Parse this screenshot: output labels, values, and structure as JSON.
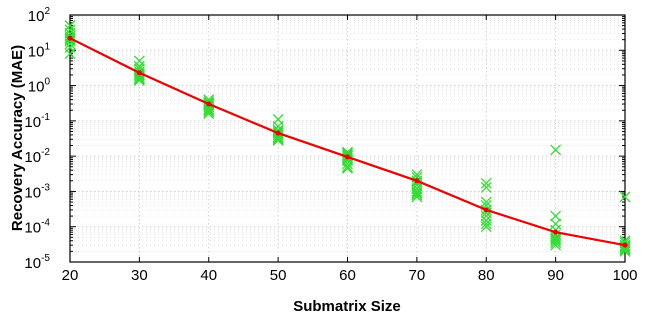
{
  "chart_data": {
    "type": "scatter",
    "title": "",
    "xlabel": "Submatrix Size",
    "ylabel": "Recovery Accuracy (MAE)",
    "xlim": [
      20,
      100
    ],
    "ylim": [
      1e-05,
      100
    ],
    "yscale": "log",
    "grid": true,
    "x_ticks": [
      "20",
      "30",
      "40",
      "50",
      "60",
      "70",
      "80",
      "90",
      "100"
    ],
    "y_ticks": [
      {
        "base": "10",
        "exp": "-5",
        "value": 1e-05
      },
      {
        "base": "10",
        "exp": "-4",
        "value": 0.0001
      },
      {
        "base": "10",
        "exp": "-3",
        "value": 0.001
      },
      {
        "base": "10",
        "exp": "-2",
        "value": 0.01
      },
      {
        "base": "10",
        "exp": "-1",
        "value": 0.1
      },
      {
        "base": "10",
        "exp": "0",
        "value": 1
      },
      {
        "base": "10",
        "exp": "1",
        "value": 10
      },
      {
        "base": "10",
        "exp": "2",
        "value": 100
      }
    ],
    "colors": {
      "trials": "#33dd33",
      "mean": "#ee0000"
    },
    "trials": [
      {
        "x": 20,
        "y": [
          50,
          38,
          30,
          25,
          22,
          20,
          18,
          15,
          12,
          8
        ]
      },
      {
        "x": 30,
        "y": [
          5,
          3.5,
          3,
          2.5,
          2.2,
          2,
          1.8,
          1.6,
          1.5,
          1.4
        ]
      },
      {
        "x": 40,
        "y": [
          0.4,
          0.35,
          0.32,
          0.3,
          0.28,
          0.25,
          0.22,
          0.2,
          0.18,
          0.16
        ]
      },
      {
        "x": 50,
        "y": [
          0.11,
          0.07,
          0.055,
          0.05,
          0.045,
          0.04,
          0.035,
          0.032,
          0.03,
          0.028
        ]
      },
      {
        "x": 60,
        "y": [
          0.013,
          0.012,
          0.011,
          0.01,
          0.009,
          0.008,
          0.0075,
          0.006,
          0.005,
          0.0045
        ]
      },
      {
        "x": 70,
        "y": [
          0.003,
          0.0025,
          0.002,
          0.0018,
          0.0015,
          0.0012,
          0.001,
          0.0009,
          0.0008,
          0.0007
        ]
      },
      {
        "x": 80,
        "y": [
          0.0017,
          0.0013,
          0.0005,
          0.0004,
          0.0003,
          0.00025,
          0.0002,
          0.00015,
          0.00012,
          0.0001
        ]
      },
      {
        "x": 90,
        "y": [
          0.015,
          0.0002,
          0.00012,
          8e-05,
          6e-05,
          5e-05,
          4.5e-05,
          4e-05,
          3.5e-05,
          3e-05
        ]
      },
      {
        "x": 100,
        "y": [
          0.0007,
          4e-05,
          3.5e-05,
          3e-05,
          2.8e-05,
          2.6e-05,
          2.5e-05,
          2.3e-05,
          2.2e-05,
          2e-05
        ]
      }
    ],
    "mean": {
      "x": [
        20,
        30,
        40,
        50,
        60,
        70,
        80,
        90,
        100
      ],
      "y": [
        22,
        2.3,
        0.3,
        0.045,
        0.0095,
        0.002,
        0.0003,
        7e-05,
        3e-05
      ]
    }
  }
}
